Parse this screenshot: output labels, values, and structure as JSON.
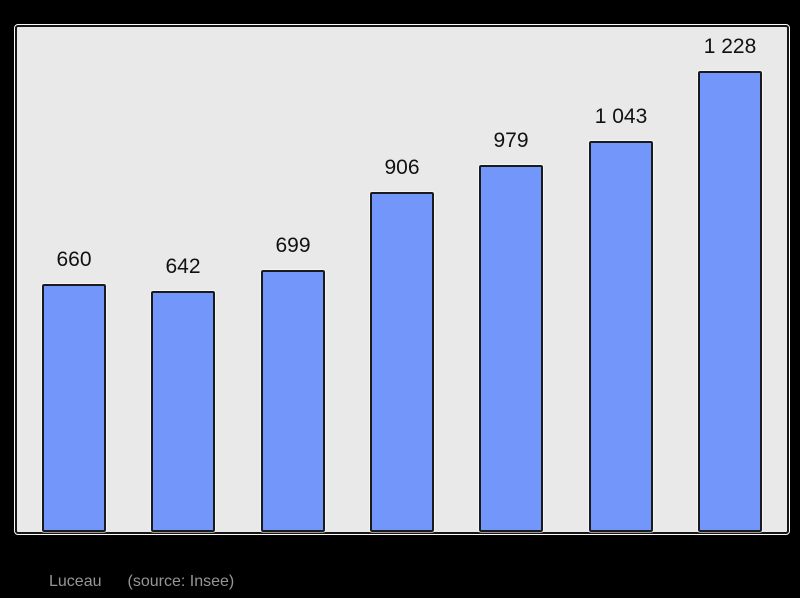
{
  "chart_data": {
    "type": "bar",
    "title": "",
    "xlabel": "",
    "ylabel": "",
    "values": [
      660,
      642,
      699,
      906,
      979,
      1043,
      1228
    ],
    "display_values": [
      "660",
      "642",
      "699",
      "906",
      "979",
      "1 043",
      "1 228"
    ],
    "ylim": [
      0,
      1350
    ],
    "grid": false,
    "legend": false,
    "bar_color": "#7296fa",
    "bar_border_color": "#1a1a1a",
    "plot_background": "#e9e9e9",
    "page_background": "#000000"
  },
  "caption": {
    "commune": "Luceau",
    "source": "(source: Insee)",
    "color": "#969696"
  }
}
